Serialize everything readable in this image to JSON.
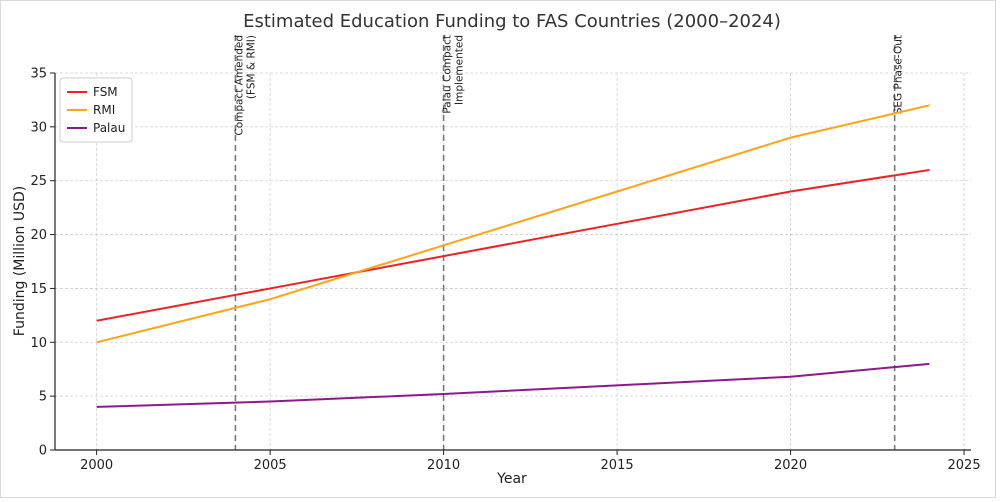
{
  "chart_data": {
    "type": "line",
    "title": "Estimated Education Funding to FAS Countries (2000–2024)",
    "xlabel": "Year",
    "ylabel": "Funding (Million USD)",
    "xlim": [
      1998.8,
      2025.2
    ],
    "ylim": [
      0,
      35
    ],
    "xticks": [
      2000,
      2005,
      2010,
      2015,
      2020,
      2025
    ],
    "yticks": [
      0,
      5,
      10,
      15,
      20,
      25,
      30,
      35
    ],
    "grid": true,
    "legend_position": "upper-left",
    "series": [
      {
        "name": "FSM",
        "color": "#ee2222",
        "x": [
          2000,
          2005,
          2010,
          2015,
          2020,
          2024
        ],
        "values": [
          12,
          15,
          18,
          21,
          24,
          26
        ]
      },
      {
        "name": "RMI",
        "color": "#ffa31a",
        "x": [
          2000,
          2005,
          2010,
          2015,
          2020,
          2024
        ],
        "values": [
          10,
          14,
          19,
          24,
          29,
          32
        ]
      },
      {
        "name": "Palau",
        "color": "#8b1a8b",
        "x": [
          2000,
          2005,
          2010,
          2015,
          2020,
          2024
        ],
        "values": [
          4,
          4.5,
          5.2,
          6,
          6.8,
          8
        ]
      }
    ],
    "annotations": [
      {
        "x": 2004,
        "lines": [
          "Compact Amended",
          "(FSM & RMI)"
        ]
      },
      {
        "x": 2010,
        "lines": [
          "Palau Compact",
          "Implemented"
        ]
      },
      {
        "x": 2023,
        "lines": [
          "SEG Phase-Out"
        ]
      }
    ]
  }
}
